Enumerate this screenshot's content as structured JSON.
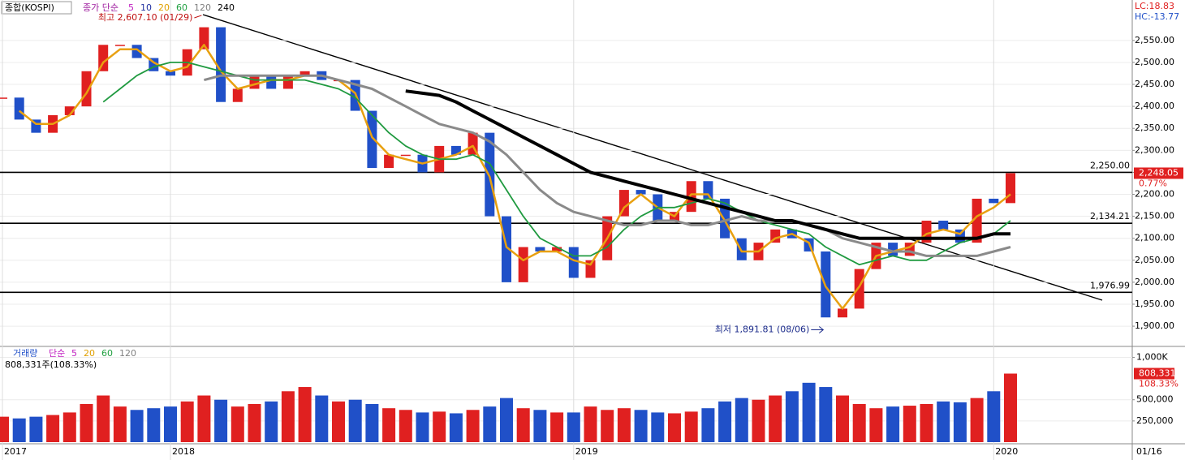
{
  "chart_data": {
    "type": "candlestick",
    "title": "종합(KOSPI)",
    "legend_prefix": "종가 단순",
    "legend_prefix_color": "#a020a0",
    "legend": [
      {
        "label": "5",
        "color": "#c020c0"
      },
      {
        "label": "10",
        "color": "#2030a0"
      },
      {
        "label": "20",
        "color": "#e0a000"
      },
      {
        "label": "60",
        "color": "#20a040"
      },
      {
        "label": "120",
        "color": "#808080"
      },
      {
        "label": "240",
        "color": "#000000"
      }
    ],
    "lc": "LC:18.83",
    "hc": "HC:-13.77",
    "categories": [
      "2017",
      null,
      null,
      null,
      null,
      null,
      null,
      null,
      null,
      null,
      "2018",
      null,
      null,
      null,
      null,
      null,
      null,
      null,
      null,
      null,
      null,
      null,
      null,
      null,
      null,
      null,
      null,
      null,
      null,
      null,
      null,
      null,
      null,
      null,
      "2019",
      null,
      null,
      null,
      null,
      null,
      null,
      null,
      null,
      null,
      null,
      null,
      null,
      null,
      null,
      null,
      null,
      null,
      null,
      null,
      null,
      null,
      null,
      null,
      null,
      "2020",
      null
    ],
    "values": [
      2420,
      2370,
      2340,
      2380,
      2400,
      2480,
      2540,
      2540,
      2510,
      2480,
      2470,
      2530,
      2580,
      2410,
      2440,
      2470,
      2440,
      2470,
      2480,
      2460,
      2460,
      2390,
      2260,
      2290,
      2290,
      2250,
      2310,
      2290,
      2340,
      2150,
      2000,
      2080,
      2070,
      2080,
      2010,
      2050,
      2150,
      2210,
      2200,
      2140,
      2160,
      2230,
      2190,
      2100,
      2050,
      2090,
      2120,
      2100,
      2070,
      1920,
      1940,
      2030,
      2090,
      2060,
      2090,
      2140,
      2120,
      2090,
      2190,
      2180,
      2248.05
    ],
    "up_color": "#e02020",
    "down_color": "#2050c8",
    "series": [
      {
        "color": "#e8a010",
        "width": 2.5,
        "values": [
          null,
          2390,
          2360,
          2360,
          2380,
          2430,
          2500,
          2530,
          2530,
          2500,
          2480,
          2490,
          2540,
          2480,
          2440,
          2450,
          2460,
          2460,
          2470,
          2470,
          2460,
          2430,
          2330,
          2290,
          2280,
          2270,
          2280,
          2290,
          2310,
          2240,
          2080,
          2050,
          2070,
          2070,
          2050,
          2040,
          2100,
          2170,
          2200,
          2170,
          2150,
          2200,
          2200,
          2140,
          2070,
          2070,
          2100,
          2110,
          2090,
          1990,
          1940,
          1990,
          2060,
          2070,
          2080,
          2110,
          2120,
          2110,
          2150,
          2170,
          2200
        ]
      },
      {
        "color": "#209a40",
        "width": 1.8,
        "values": [
          null,
          null,
          null,
          null,
          null,
          null,
          2410,
          2440,
          2470,
          2490,
          2500,
          2500,
          2490,
          2480,
          2470,
          2460,
          2460,
          2460,
          2460,
          2450,
          2440,
          2420,
          2380,
          2340,
          2310,
          2290,
          2280,
          2280,
          2290,
          2270,
          2210,
          2150,
          2100,
          2080,
          2060,
          2060,
          2080,
          2120,
          2150,
          2170,
          2170,
          2180,
          2190,
          2180,
          2160,
          2140,
          2130,
          2120,
          2110,
          2080,
          2060,
          2040,
          2050,
          2060,
          2050,
          2050,
          2070,
          2090,
          2100,
          2110,
          2140
        ]
      },
      {
        "color": "#8a8a8a",
        "width": 3,
        "values": [
          null,
          null,
          null,
          null,
          null,
          null,
          null,
          null,
          null,
          null,
          null,
          null,
          2460,
          2470,
          2470,
          2470,
          2470,
          2470,
          2470,
          2470,
          2460,
          2450,
          2440,
          2420,
          2400,
          2380,
          2360,
          2350,
          2340,
          2320,
          2290,
          2250,
          2210,
          2180,
          2160,
          2150,
          2140,
          2130,
          2130,
          2140,
          2140,
          2130,
          2130,
          2140,
          2150,
          2140,
          2140,
          2140,
          2130,
          2120,
          2100,
          2090,
          2080,
          2070,
          2070,
          2060,
          2060,
          2060,
          2060,
          2070,
          2080
        ]
      },
      {
        "color": "#000000",
        "width": 4,
        "values": [
          null,
          null,
          null,
          null,
          null,
          null,
          null,
          null,
          null,
          null,
          null,
          null,
          null,
          null,
          null,
          null,
          null,
          null,
          null,
          null,
          null,
          null,
          null,
          null,
          2435,
          2430,
          2425,
          2410,
          2390,
          2370,
          2350,
          2330,
          2310,
          2290,
          2270,
          2250,
          2240,
          2230,
          2220,
          2210,
          2200,
          2190,
          2180,
          2170,
          2160,
          2150,
          2140,
          2140,
          2130,
          2120,
          2110,
          2100,
          2100,
          2100,
          2100,
          2100,
          2100,
          2100,
          2100,
          2110,
          2110
        ]
      }
    ],
    "hlines": [
      {
        "value": 2250,
        "label": "2,250.00"
      },
      {
        "value": 2134.21,
        "label": "2,134.21"
      },
      {
        "value": 1976.99,
        "label": "1,976.99"
      }
    ],
    "high_note": {
      "text": "최고 2,607.10 (01/29)",
      "value": 2607.1
    },
    "low_note": {
      "text": "최저 1,891.81 (08/06)",
      "value": 1891.81
    },
    "last": {
      "label": "2,248.05",
      "value": 2248.05,
      "change": "0.77%"
    },
    "ylim": [
      1854,
      2642
    ],
    "yticks": [
      {
        "value": 1900,
        "label": "1,900.00"
      },
      {
        "value": 1950,
        "label": "1,950.00"
      },
      {
        "value": 2000,
        "label": "2,000.00"
      },
      {
        "value": 2050,
        "label": "2,050.00"
      },
      {
        "value": 2100,
        "label": "2,100.00"
      },
      {
        "value": 2150,
        "label": "2,150.00"
      },
      {
        "value": 2200,
        "label": "2,200.00"
      },
      {
        "value": 2250,
        "label": "2,250.00"
      },
      {
        "value": 2300,
        "label": "2,300.00"
      },
      {
        "value": 2350,
        "label": "2,350.00"
      },
      {
        "value": 2400,
        "label": "2,400.00"
      },
      {
        "value": 2450,
        "label": "2,450.00"
      },
      {
        "value": 2500,
        "label": "2,500.00"
      },
      {
        "value": 2550,
        "label": "2,550.00"
      }
    ],
    "grid": true,
    "date_label": "01/16",
    "volume": {
      "title": "거래량",
      "title_color": "#2050c8",
      "legend_prefix": "단순",
      "legend_prefix_color": "#c020c0",
      "legend": [
        {
          "label": "5",
          "color": "#c020c0"
        },
        {
          "label": "20",
          "color": "#e0a000"
        },
        {
          "label": "60",
          "color": "#20a040"
        },
        {
          "label": "120",
          "color": "#808080"
        }
      ],
      "info": "808,331주(108.33%)",
      "values": [
        300000,
        280000,
        300000,
        320000,
        350000,
        450000,
        550000,
        420000,
        380000,
        400000,
        420000,
        480000,
        550000,
        500000,
        420000,
        450000,
        480000,
        600000,
        650000,
        550000,
        480000,
        500000,
        450000,
        400000,
        380000,
        350000,
        360000,
        340000,
        380000,
        420000,
        520000,
        400000,
        380000,
        350000,
        350000,
        420000,
        380000,
        400000,
        380000,
        350000,
        340000,
        360000,
        400000,
        480000,
        520000,
        500000,
        550000,
        600000,
        700000,
        650000,
        550000,
        450000,
        400000,
        420000,
        430000,
        450000,
        480000,
        470000,
        520000,
        600000,
        808331
      ],
      "last_label": "808,331",
      "last_change": "108.33%",
      "ylim": [
        0,
        1100000
      ],
      "yticks": [
        {
          "value": 250000,
          "label": "250,000"
        },
        {
          "value": 500000,
          "label": "500,000"
        },
        {
          "value": 1000000,
          "label": "1,000K"
        }
      ]
    }
  }
}
